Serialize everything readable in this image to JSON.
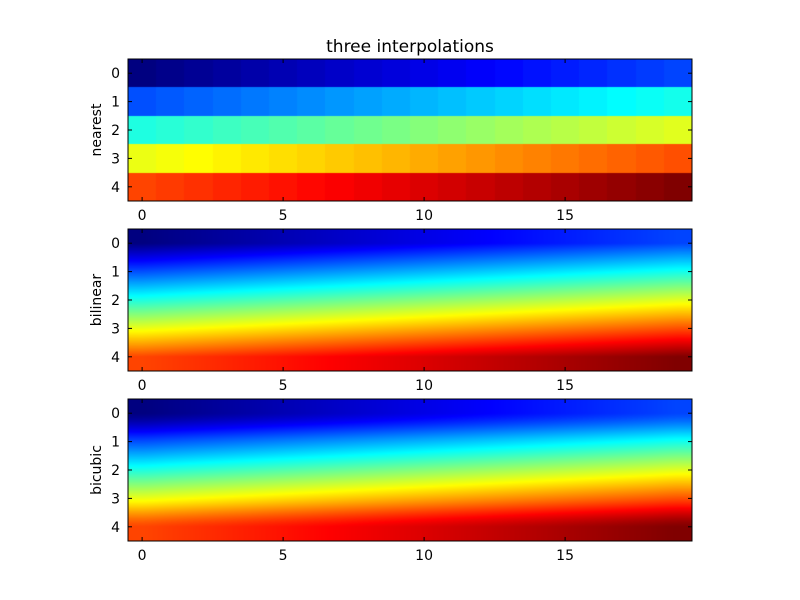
{
  "chart_data": {
    "type": "heatmap",
    "title": "three interpolations",
    "colormap": "jet",
    "data_shape": [
      5,
      20
    ],
    "value_rule": "value[r][c] = r*20 + c (0..99)",
    "xlim": [
      -0.5,
      19.5
    ],
    "ylim": [
      4.5,
      -0.5
    ],
    "x_ticks": [
      0,
      5,
      10,
      15
    ],
    "y_ticks": [
      0,
      1,
      2,
      3,
      4
    ],
    "subplots": [
      {
        "interpolation": "nearest",
        "ylabel": "nearest"
      },
      {
        "interpolation": "bilinear",
        "ylabel": "bilinear"
      },
      {
        "interpolation": "bicubic",
        "ylabel": "bicubic"
      }
    ]
  }
}
